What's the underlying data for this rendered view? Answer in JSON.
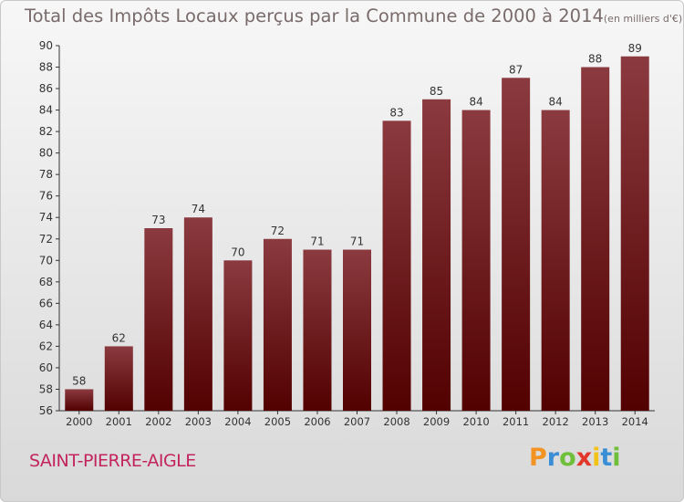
{
  "title": "Total des Impôts Locaux perçus par la Commune de 2000 à 2014",
  "title_unit": "(en milliers d'€)",
  "commune": "SAINT-PIERRE-AIGLE",
  "brand": {
    "text": "Proxiti",
    "letters": [
      {
        "ch": "P",
        "color": "#f39323"
      },
      {
        "ch": "r",
        "color": "#3a8ed6"
      },
      {
        "ch": "o",
        "color": "#6fbf3a"
      },
      {
        "ch": "x",
        "color": "#e2372b"
      },
      {
        "ch": "i",
        "color": "#f3c218"
      },
      {
        "ch": "t",
        "color": "#3a8ed6"
      },
      {
        "ch": "i",
        "color": "#6fbf3a"
      }
    ]
  },
  "colors": {
    "bar_top": "#8b3a3f",
    "bar_bottom": "#520000",
    "axis": "#333333",
    "text": "#333333"
  },
  "chart_data": {
    "type": "bar",
    "categories": [
      "2000",
      "2001",
      "2002",
      "2003",
      "2004",
      "2005",
      "2006",
      "2007",
      "2008",
      "2009",
      "2010",
      "2011",
      "2012",
      "2013",
      "2014"
    ],
    "values": [
      58,
      62,
      73,
      74,
      70,
      72,
      71,
      71,
      83,
      85,
      84,
      87,
      84,
      88,
      89
    ],
    "ylim": [
      56,
      90
    ],
    "yticks": [
      56,
      58,
      60,
      62,
      64,
      66,
      68,
      70,
      72,
      74,
      76,
      78,
      80,
      82,
      84,
      86,
      88,
      90
    ],
    "xlabel": "",
    "ylabel": "",
    "grid": false,
    "data_labels": true
  }
}
